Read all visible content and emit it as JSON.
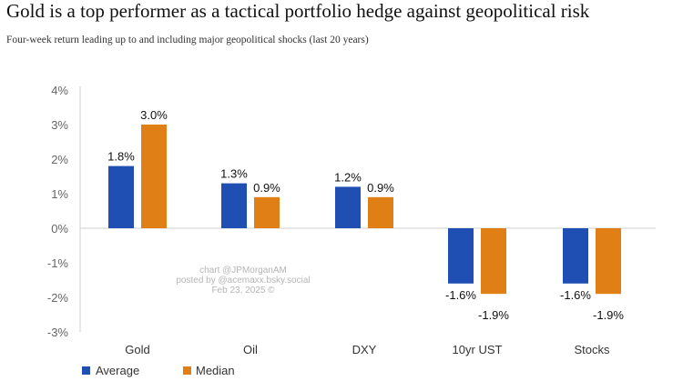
{
  "colors": {
    "average": "#1f4fb3",
    "median": "#e07f16",
    "axis": "#cfcfcf"
  },
  "chart_data": {
    "type": "bar",
    "title": "Gold is a top performer as a tactical portfolio hedge against geopolitical risk",
    "subtitle": "Four-week return leading up to and including major geopolitical shocks (last 20 years)",
    "categories": [
      "Gold",
      "Oil",
      "DXY",
      "10yr UST",
      "Stocks"
    ],
    "series": [
      {
        "name": "Average",
        "values": [
          1.8,
          1.3,
          1.2,
          -1.6,
          -1.6
        ],
        "labels": [
          "1.8%",
          "1.3%",
          "1.2%",
          "-1.6%",
          "-1.6%"
        ]
      },
      {
        "name": "Median",
        "values": [
          3.0,
          0.9,
          0.9,
          -1.9,
          -1.9
        ],
        "labels": [
          "3.0%",
          "0.9%",
          "0.9%",
          "-1.9%",
          "-1.9%"
        ]
      }
    ],
    "ylim": [
      -3,
      4
    ],
    "yticks": [
      4,
      3,
      2,
      1,
      0,
      -1,
      -2,
      -3
    ],
    "ytick_labels": [
      "4%",
      "3%",
      "2%",
      "1%",
      "0%",
      "-1%",
      "-2%",
      "-3%"
    ],
    "xlabel": "",
    "ylabel": "",
    "grid": false,
    "legend": "bottom-left"
  },
  "watermark": [
    "chart @JPMorganAM",
    "posted by @acemaxx.bsky.social",
    "Feb 23, 2025 ©"
  ]
}
